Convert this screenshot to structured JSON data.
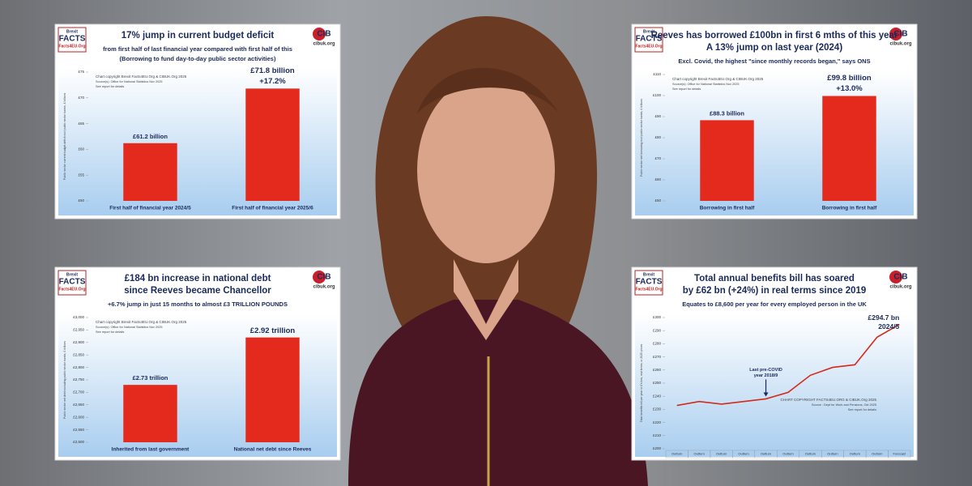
{
  "chart_data": [
    {
      "type": "bar",
      "title": [
        "17% jump in current budget deficit"
      ],
      "subtitle": [
        "from first half of last financial year compared with first half of this",
        "(Borrowing to fund day-to-day public sector activities)"
      ],
      "logo_left": [
        "Brexit",
        "FACTS",
        "Facts4EU.Org"
      ],
      "logo_right": [
        "CIB",
        "cibuk.org"
      ],
      "notes": [
        "Chart copyright Brexit Facts4EU.Org & CIBUK.Org 2025",
        "Source(s): Office for National Statistics Nov 2025",
        "See report for details"
      ],
      "ylabel": "Public sector current budget deficit excl public sector banks, £ billions",
      "categories": [
        "First half of financial year 2024/5",
        "First half of financial year 2025/6"
      ],
      "values": [
        61.2,
        71.8
      ],
      "value_labels": [
        "£61.2 billion",
        "£71.8 billion"
      ],
      "annotations": [
        [
          "+17.2%"
        ]
      ],
      "color": "#e42a1c",
      "ylim": [
        50,
        75
      ],
      "yticks": [
        {
          "value": 50,
          "label": "£50"
        },
        {
          "value": 55,
          "label": "£55"
        },
        {
          "value": 60,
          "label": "£60"
        },
        {
          "value": 65,
          "label": "£65"
        },
        {
          "value": 70,
          "label": "£70"
        },
        {
          "value": 75,
          "label": "£75"
        }
      ]
    },
    {
      "type": "bar",
      "title": [
        "Reeves has borrowed £100bn in first 6 mths of this year",
        "A 13% jump on last year (2024)"
      ],
      "subtitle": [
        "Excl. Covid, the highest \"since monthly records began,\" says ONS"
      ],
      "logo_left": [
        "Brexit",
        "FACTS",
        "Facts4EU.Org"
      ],
      "logo_right": [
        "CIB",
        "cibuk.org"
      ],
      "notes": [
        "Chart copyright Brexit Facts4EU.Org & CIBUK.Org 2025",
        "Source(s): Office for National Statistics Nov 2025",
        "See report for details"
      ],
      "ylabel": "Public sector net borrowing excl public sector banks, £ billions",
      "categories": [
        "Borrowing in first half",
        "Borrowing in first half"
      ],
      "values": [
        88.3,
        99.8
      ],
      "value_labels": [
        "£88.3 billion",
        "£99.8 billion"
      ],
      "annotations": [
        [
          "+13.0%"
        ]
      ],
      "color": "#e42a1c",
      "ylim": [
        50,
        110
      ],
      "yticks": [
        {
          "value": 50,
          "label": "£50"
        },
        {
          "value": 60,
          "label": "£60"
        },
        {
          "value": 70,
          "label": "£70"
        },
        {
          "value": 80,
          "label": "£80"
        },
        {
          "value": 90,
          "label": "£90"
        },
        {
          "value": 100,
          "label": "£100"
        },
        {
          "value": 110,
          "label": "£110"
        }
      ]
    },
    {
      "type": "bar",
      "title": [
        "£184 bn increase in national debt",
        "since Reeves became Chancellor"
      ],
      "subtitle": [
        "+6.7% jump in just 15 months to almost £3 TRILLION POUNDS"
      ],
      "logo_left": [
        "Brexit",
        "FACTS",
        "Facts4EU.Org"
      ],
      "logo_right": [
        "CIB",
        "cibuk.org"
      ],
      "notes": [
        "Chart copyright Brexit Facts4EU.Org & CIBUK.Org 2025",
        "Source(s): Office for National Statistics Nov 2025",
        "See report for details"
      ],
      "ylabel": "Public sector net debt excluding public sector banks, £ billions",
      "categories": [
        "Inherited from last government",
        "National net debt since Reeves"
      ],
      "values": [
        2730,
        2920
      ],
      "value_labels": [
        "£2.73 trillion",
        "£2.92 trillion"
      ],
      "annotations": [],
      "color": "#e42a1c",
      "ylim": [
        2500,
        3000
      ],
      "yticks": [
        {
          "value": 2500,
          "label": "£2,500"
        },
        {
          "value": 2550,
          "label": "£2,550"
        },
        {
          "value": 2600,
          "label": "£2,600"
        },
        {
          "value": 2650,
          "label": "£2,650"
        },
        {
          "value": 2700,
          "label": "£2,700"
        },
        {
          "value": 2750,
          "label": "£2,750"
        },
        {
          "value": 2800,
          "label": "£2,800"
        },
        {
          "value": 2850,
          "label": "£2,850"
        },
        {
          "value": 2900,
          "label": "£2,900"
        },
        {
          "value": 2950,
          "label": "£2,950"
        },
        {
          "value": 3000,
          "label": "£3,000"
        }
      ]
    },
    {
      "type": "line",
      "title": [
        "Total annual benefits bill has soared",
        "by £62 bn (+24%) in real terms since 2019"
      ],
      "subtitle": [
        "Equates to £8,600 per year for every employed person in the UK"
      ],
      "logo_left": [
        "Brexit",
        "FACTS",
        "Facts4EU.Org"
      ],
      "logo_right": [
        "CIB",
        "cibuk.org"
      ],
      "notes": [
        "CHART COPYRIGHT FACTS4EU.ORG & CIBUK.Org 2025",
        "Source : Dept for Work and Pensions, Oct 2025",
        "See report for details"
      ],
      "ylabel": "Total benefits bill per year in £'s bns, real terms, in 2025 prices",
      "categories": [
        "Outturn",
        "Outturn",
        "Outturn",
        "Outturn",
        "Outturn",
        "Outturn",
        "Outturn",
        "Outturn",
        "Outturn",
        "Outturn",
        "Forecast"
      ],
      "values": [
        233,
        236,
        234,
        236,
        238,
        243,
        256,
        262,
        264,
        285,
        294.7
      ],
      "annotations": [
        [
          "Last pre-COVID",
          "year 2018/9"
        ],
        [
          "£294.7 bn",
          "2024/5"
        ]
      ],
      "color": "#d42a1a",
      "ylim": [
        200,
        300
      ],
      "yticks": [
        {
          "value": 200,
          "label": "£200"
        },
        {
          "value": 210,
          "label": "£210"
        },
        {
          "value": 220,
          "label": "£220"
        },
        {
          "value": 230,
          "label": "£230"
        },
        {
          "value": 240,
          "label": "£240"
        },
        {
          "value": 250,
          "label": "£250"
        },
        {
          "value": 260,
          "label": "£260"
        },
        {
          "value": 270,
          "label": "£270"
        },
        {
          "value": 280,
          "label": "£280"
        },
        {
          "value": 290,
          "label": "£290"
        },
        {
          "value": 300,
          "label": "£300"
        }
      ]
    }
  ]
}
